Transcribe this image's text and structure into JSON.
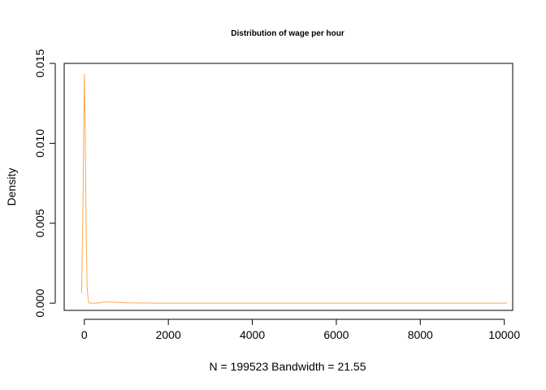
{
  "chart_data": {
    "type": "line",
    "title": "Distribution of wage per hour",
    "xlabel": "N = 199523   Bandwidth = 21.55",
    "ylabel": "Density",
    "xlim": [
      -480,
      10200
    ],
    "ylim": [
      -0.00045,
      0.015
    ],
    "x_ticks": [
      0,
      2000,
      4000,
      6000,
      8000,
      10000
    ],
    "x_tick_labels": [
      "0",
      "2000",
      "4000",
      "6000",
      "8000",
      "10000"
    ],
    "y_ticks": [
      0.0,
      0.005,
      0.01,
      0.015
    ],
    "y_tick_labels": [
      "0.000",
      "0.005",
      "0.010",
      "0.015"
    ],
    "grid": false,
    "series": [
      {
        "color": "#fba94f",
        "x": [
          -65,
          -30,
          0,
          20,
          40,
          65,
          100,
          150,
          250,
          400,
          450,
          500,
          600,
          800,
          1000,
          1500,
          2000,
          3000,
          5000,
          7000,
          9000,
          10065
        ],
        "y": [
          0.00065,
          0.007,
          0.01435,
          0.011,
          0.005,
          0.001,
          3e-05,
          0.0,
          0.0,
          3e-05,
          8e-05,
          8e-05,
          7e-05,
          5e-05,
          2e-05,
          1e-05,
          0.0,
          0.0,
          0.0,
          0.0,
          0.0,
          0.0
        ]
      }
    ]
  }
}
